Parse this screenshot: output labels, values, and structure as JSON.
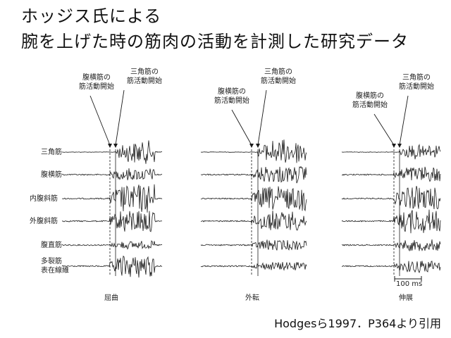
{
  "slide": {
    "title_line1": "ホッジス氏による",
    "title_line2": "腕を上げた時の筋肉の活動を計測した研究データ",
    "citation": "Hodgesら1997．P364より引用"
  },
  "figure": {
    "muscles": [
      "三角筋",
      "腹横筋",
      "内腹斜筋",
      "外腹斜筋",
      "腹直筋",
      "多裂筋\n表在線維"
    ],
    "conditions": [
      "屈曲",
      "外転",
      "伸展"
    ],
    "annotation_ta_line1": "腹横筋の",
    "annotation_ta_line2": "筋活動開始",
    "annotation_delt_line1": "三角筋の",
    "annotation_delt_line2": "筋活動開始",
    "scale_label": "100 ms",
    "colors": {
      "trace": "#1a1a1a",
      "text": "#222222"
    }
  }
}
